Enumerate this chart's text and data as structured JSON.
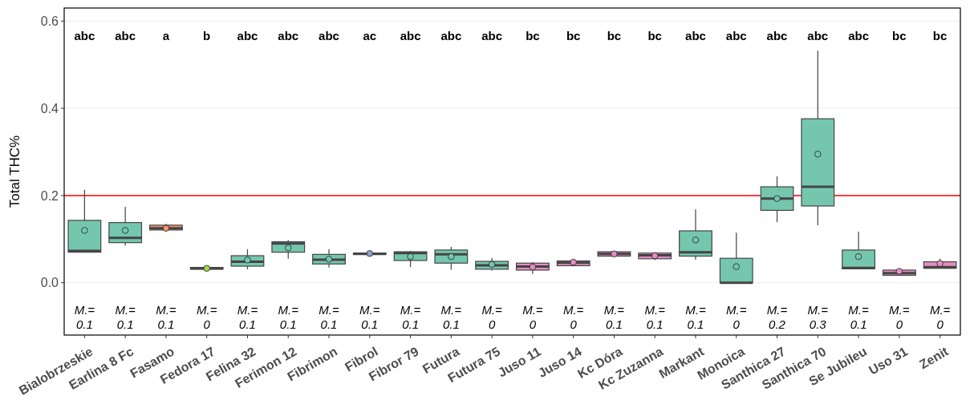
{
  "chart_data": {
    "type": "box",
    "ylabel": "Total THC%",
    "categories": [
      "Bialobrzeskie",
      "Earlina 8 Fc",
      "Fasamo",
      "Fedora 17",
      "Felina 32",
      "Ferimon 12",
      "Fibrimon",
      "Fibrol",
      "Fibror 79",
      "Futura",
      "Futura 75",
      "Juso 11",
      "Juso 14",
      "Kc Dóra",
      "Kc Zuzanna",
      "Markant",
      "Monoica",
      "Santhica 27",
      "Santhica 70",
      "Se Jubileu",
      "Uso 31",
      "Zenit"
    ],
    "colors": [
      "#74c7ad",
      "#74c7ad",
      "#f5956f",
      "#a6d854",
      "#74c7ad",
      "#74c7ad",
      "#74c7ad",
      "#8da0cb",
      "#74c7ad",
      "#74c7ad",
      "#74c7ad",
      "#e58fc4",
      "#e58fc4",
      "#e58fc4",
      "#e58fc4",
      "#74c7ad",
      "#74c7ad",
      "#74c7ad",
      "#74c7ad",
      "#74c7ad",
      "#e58fc4",
      "#e58fc4"
    ],
    "boxes": [
      {
        "low": 0.07,
        "q1": 0.07,
        "median": 0.073,
        "q3": 0.143,
        "high": 0.213,
        "mean": 0.12
      },
      {
        "low": 0.085,
        "q1": 0.092,
        "median": 0.103,
        "q3": 0.138,
        "high": 0.174,
        "mean": 0.12
      },
      {
        "low": 0.118,
        "q1": 0.121,
        "median": 0.125,
        "q3": 0.132,
        "high": 0.135,
        "mean": 0.125
      },
      {
        "low": 0.03,
        "q1": 0.031,
        "median": 0.033,
        "q3": 0.035,
        "high": 0.036,
        "mean": 0.033
      },
      {
        "low": 0.031,
        "q1": 0.038,
        "median": 0.048,
        "q3": 0.062,
        "high": 0.077,
        "mean": 0.052
      },
      {
        "low": 0.055,
        "q1": 0.07,
        "median": 0.09,
        "q3": 0.094,
        "high": 0.098,
        "mean": 0.08
      },
      {
        "low": 0.035,
        "q1": 0.043,
        "median": 0.053,
        "q3": 0.065,
        "high": 0.077,
        "mean": 0.054
      },
      {
        "low": 0.065,
        "q1": 0.065,
        "median": 0.066,
        "q3": 0.068,
        "high": 0.068,
        "mean": 0.067
      },
      {
        "low": 0.036,
        "q1": 0.051,
        "median": 0.068,
        "q3": 0.071,
        "high": 0.073,
        "mean": 0.06
      },
      {
        "low": 0.03,
        "q1": 0.045,
        "median": 0.065,
        "q3": 0.075,
        "high": 0.082,
        "mean": 0.06
      },
      {
        "low": 0.028,
        "q1": 0.031,
        "median": 0.04,
        "q3": 0.049,
        "high": 0.057,
        "mean": 0.042
      },
      {
        "low": 0.02,
        "q1": 0.029,
        "median": 0.037,
        "q3": 0.045,
        "high": 0.047,
        "mean": 0.036
      },
      {
        "low": 0.039,
        "q1": 0.039,
        "median": 0.046,
        "q3": 0.05,
        "high": 0.053,
        "mean": 0.047
      },
      {
        "low": 0.061,
        "q1": 0.061,
        "median": 0.066,
        "q3": 0.071,
        "high": 0.071,
        "mean": 0.066
      },
      {
        "low": 0.052,
        "q1": 0.055,
        "median": 0.063,
        "q3": 0.068,
        "high": 0.07,
        "mean": 0.062
      },
      {
        "low": 0.053,
        "q1": 0.061,
        "median": 0.07,
        "q3": 0.119,
        "high": 0.168,
        "mean": 0.098
      },
      {
        "low": 0,
        "q1": 0,
        "median": 0,
        "q3": 0.056,
        "high": 0.115,
        "mean": 0.037
      },
      {
        "low": 0.139,
        "q1": 0.166,
        "median": 0.193,
        "q3": 0.22,
        "high": 0.244,
        "mean": 0.193
      },
      {
        "low": 0.132,
        "q1": 0.176,
        "median": 0.22,
        "q3": 0.376,
        "high": 0.532,
        "mean": 0.295
      },
      {
        "low": 0.032,
        "q1": 0.032,
        "median": 0.034,
        "q3": 0.075,
        "high": 0.117,
        "mean": 0.06
      },
      {
        "low": 0.016,
        "q1": 0.017,
        "median": 0.022,
        "q3": 0.029,
        "high": 0.03,
        "mean": 0.026
      },
      {
        "low": 0.033,
        "q1": 0.033,
        "median": 0.036,
        "q3": 0.048,
        "high": 0.055,
        "mean": 0.044
      }
    ],
    "ylim": [
      -0.12,
      0.63
    ],
    "yticks": [
      {
        "value": 0,
        "label": "0.0"
      },
      {
        "value": 0.2,
        "label": "0.2"
      },
      {
        "value": 0.4,
        "label": "0.4"
      },
      {
        "value": 0.6,
        "label": "0.6"
      }
    ],
    "grid": "y",
    "ref_lines": [
      {
        "axis": "y",
        "value": 0.2,
        "color": "#ff0000"
      }
    ],
    "annotations": [
      "abc",
      "abc",
      "a",
      "b",
      "abc",
      "abc",
      "abc",
      "ac",
      "abc",
      "abc",
      "abc",
      "bc",
      "bc",
      "bc",
      "bc",
      "abc",
      "abc",
      "abc",
      "abc",
      "abc",
      "bc",
      "bc",
      "M.= 0.1",
      "M.= 0.1",
      "M.= 0.1",
      "M.= 0",
      "M.= 0.1",
      "M.= 0.1",
      "M.= 0.1",
      "M.= 0.1",
      "M.= 0.1",
      "M.= 0.1",
      "M.= 0",
      "M.= 0",
      "M.= 0",
      "M.= 0.1",
      "M.= 0.1",
      "M.= 0.1",
      "M.= 0",
      "M.= 0.2",
      "M.= 0.3",
      "M.= 0.1",
      "M.= 0",
      "M.= 0"
    ]
  }
}
